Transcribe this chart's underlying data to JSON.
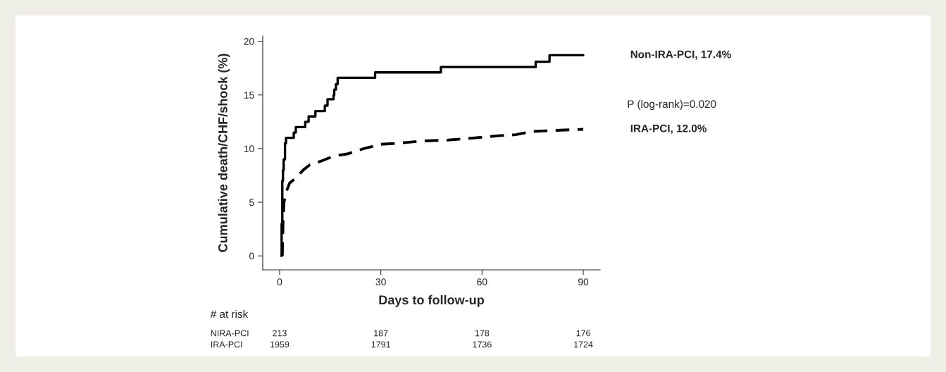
{
  "chart_data": {
    "type": "step",
    "xlabel": "Days to follow-up",
    "ylabel": "Cumulative death/CHF/shock (%)",
    "xlim": [
      -5,
      95
    ],
    "ylim": [
      -1.3,
      20.5
    ],
    "xticks": [
      0,
      30,
      60,
      90
    ],
    "yticks": [
      0,
      5,
      10,
      15,
      20
    ],
    "grid": false,
    "legend": false,
    "series": [
      {
        "name": "Non-IRA-PCI, 17.4%",
        "line_style": "solid",
        "color": "#000000",
        "x": [
          0.5,
          0.6,
          0.8,
          1.0,
          1.2,
          1.6,
          1.9,
          4.2,
          4.8,
          7.6,
          8.6,
          10.6,
          13.4,
          14.2,
          16.0,
          16.2,
          16.7,
          17.2,
          28.3,
          47.8,
          75.9,
          80.0,
          90
        ],
        "values": [
          0,
          3,
          7,
          8,
          9,
          10.5,
          11,
          11.5,
          12,
          12.5,
          13,
          13.5,
          14,
          14.6,
          15,
          15.5,
          16,
          16.6,
          17.1,
          17.6,
          18.1,
          18.7,
          18.7
        ]
      },
      {
        "name": "IRA-PCI, 12.0%",
        "type": "line",
        "line_style": "dashed",
        "color": "#000000",
        "x": [
          0.8,
          1,
          1.3,
          2,
          3,
          5,
          7,
          9,
          12,
          16,
          20,
          25,
          30,
          35,
          42,
          50,
          58,
          65,
          70,
          75,
          82,
          90
        ],
        "values": [
          0,
          3,
          5,
          6,
          6.8,
          7.3,
          8,
          8.5,
          8.8,
          9.3,
          9.5,
          10,
          10.4,
          10.5,
          10.7,
          10.8,
          11,
          11.2,
          11.3,
          11.6,
          11.7,
          11.8
        ]
      }
    ],
    "annotations": [
      "P (log-rank)=0.020",
      "# at risk",
      "NIRA-PCI",
      "213",
      "187",
      "178",
      "176",
      "IRA-PCI",
      "1959",
      "1791",
      "1736",
      "1724"
    ]
  }
}
